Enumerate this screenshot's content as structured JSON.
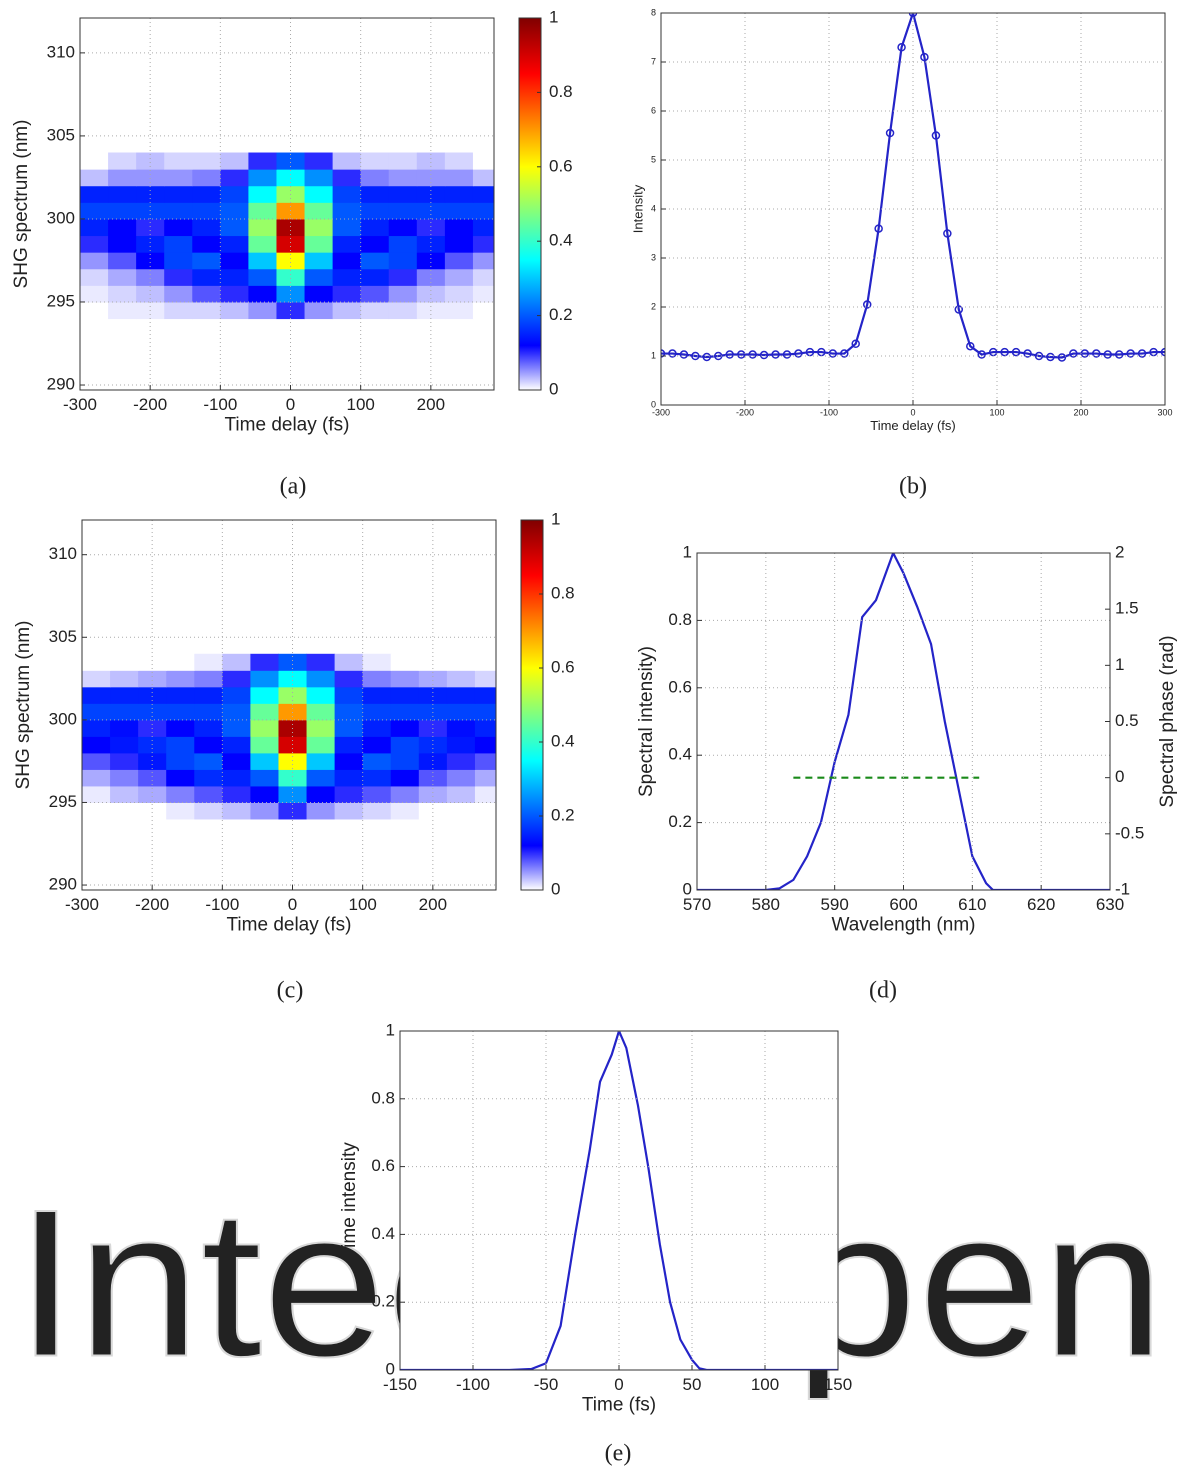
{
  "watermark": "IntechOpen",
  "chart_data": [
    {
      "type": "heatmap",
      "caption": "(a)",
      "xlabel": "Time delay (fs)",
      "ylabel": "SHG spectrum (nm)",
      "xlim": [
        -300,
        290
      ],
      "ylim": [
        289.7,
        312.1
      ],
      "xticks": [
        -300,
        -200,
        -100,
        0,
        100,
        200
      ],
      "yticks": [
        290,
        295,
        300,
        305,
        310
      ],
      "grid": true,
      "clim": [
        0,
        1
      ],
      "cticks": [
        0,
        0.2,
        0.4,
        0.6,
        0.8,
        1
      ],
      "x": [
        -280,
        -240,
        -200,
        -160,
        -120,
        -80,
        -40,
        0,
        40,
        80,
        120,
        160,
        200,
        240,
        280
      ],
      "y": [
        294.5,
        295.5,
        296.5,
        297.5,
        298.5,
        299.5,
        300.5,
        301.5,
        302.5,
        303.5
      ],
      "z": [
        [
          0,
          0.01,
          0.01,
          0.02,
          0.02,
          0.03,
          0.05,
          0.1,
          0.05,
          0.03,
          0.02,
          0.02,
          0.01,
          0.01,
          0
        ],
        [
          0.01,
          0.02,
          0.03,
          0.05,
          0.08,
          0.1,
          0.12,
          0.25,
          0.12,
          0.1,
          0.08,
          0.05,
          0.03,
          0.02,
          0.01
        ],
        [
          0.02,
          0.04,
          0.06,
          0.1,
          0.15,
          0.15,
          0.2,
          0.4,
          0.2,
          0.15,
          0.15,
          0.1,
          0.06,
          0.04,
          0.02
        ],
        [
          0.05,
          0.08,
          0.12,
          0.18,
          0.2,
          0.12,
          0.3,
          0.6,
          0.3,
          0.12,
          0.2,
          0.18,
          0.12,
          0.08,
          0.05
        ],
        [
          0.1,
          0.12,
          0.15,
          0.18,
          0.12,
          0.15,
          0.45,
          0.9,
          0.45,
          0.15,
          0.12,
          0.18,
          0.15,
          0.12,
          0.1
        ],
        [
          0.15,
          0.12,
          0.1,
          0.12,
          0.15,
          0.2,
          0.5,
          0.95,
          0.5,
          0.2,
          0.15,
          0.12,
          0.1,
          0.12,
          0.15
        ],
        [
          0.18,
          0.18,
          0.18,
          0.18,
          0.18,
          0.2,
          0.45,
          0.7,
          0.45,
          0.2,
          0.18,
          0.18,
          0.18,
          0.18,
          0.18
        ],
        [
          0.15,
          0.15,
          0.15,
          0.15,
          0.15,
          0.18,
          0.35,
          0.5,
          0.35,
          0.18,
          0.15,
          0.15,
          0.15,
          0.15,
          0.15
        ],
        [
          0.03,
          0.05,
          0.05,
          0.05,
          0.06,
          0.1,
          0.25,
          0.35,
          0.25,
          0.1,
          0.06,
          0.05,
          0.05,
          0.05,
          0.03
        ],
        [
          0,
          0.02,
          0.03,
          0.02,
          0.02,
          0.03,
          0.1,
          0.2,
          0.1,
          0.03,
          0.02,
          0.02,
          0.03,
          0.02,
          0
        ]
      ]
    },
    {
      "type": "line",
      "caption": "(b)",
      "xlabel": "Time delay (fs)",
      "ylabel": "Intensity",
      "xlim": [
        -300,
        300
      ],
      "ylim": [
        0,
        8
      ],
      "xticks": [
        -300,
        -200,
        -100,
        0,
        100,
        200,
        300
      ],
      "yticks": [
        0,
        1,
        2,
        3,
        4,
        5,
        6,
        7,
        8
      ],
      "grid": true,
      "x": [
        -300,
        -286.4,
        -272.7,
        -259.1,
        -245.5,
        -231.8,
        -218.2,
        -204.5,
        -190.9,
        -177.3,
        -163.6,
        -150,
        -136.4,
        -122.7,
        -109.1,
        -95.5,
        -81.8,
        -68.2,
        -54.5,
        -40.9,
        -27.3,
        -13.6,
        0,
        13.6,
        27.3,
        40.9,
        54.5,
        68.2,
        81.8,
        95.5,
        109.1,
        122.7,
        136.4,
        150,
        163.6,
        177.3,
        190.9,
        204.5,
        218.2,
        231.8,
        245.5,
        259.1,
        272.7,
        286.4,
        300
      ],
      "series": [
        {
          "color": "#2424c8",
          "marker": "circle",
          "values": [
            1.05,
            1.05,
            1.03,
            1.0,
            0.98,
            1.0,
            1.03,
            1.03,
            1.03,
            1.02,
            1.03,
            1.03,
            1.05,
            1.08,
            1.08,
            1.05,
            1.05,
            1.25,
            2.05,
            3.6,
            5.55,
            7.3,
            8,
            7.1,
            5.5,
            3.5,
            1.95,
            1.2,
            1.03,
            1.08,
            1.08,
            1.08,
            1.05,
            1.0,
            0.98,
            0.97,
            1.05,
            1.05,
            1.05,
            1.03,
            1.03,
            1.05,
            1.05,
            1.08,
            1.08
          ]
        }
      ]
    },
    {
      "type": "heatmap",
      "caption": "(c)",
      "xlabel": "Time delay (fs)",
      "ylabel": "SHG spectrum (nm)",
      "xlim": [
        -300,
        290
      ],
      "ylim": [
        289.7,
        312.1
      ],
      "xticks": [
        -300,
        -200,
        -100,
        0,
        100,
        200
      ],
      "yticks": [
        290,
        295,
        300,
        305,
        310
      ],
      "grid": true,
      "clim": [
        0,
        1
      ],
      "cticks": [
        0,
        0.2,
        0.4,
        0.6,
        0.8,
        1
      ],
      "x": [
        -280,
        -240,
        -200,
        -160,
        -120,
        -80,
        -40,
        0,
        40,
        80,
        120,
        160,
        200,
        240,
        280
      ],
      "y": [
        294.5,
        295.5,
        296.5,
        297.5,
        298.5,
        299.5,
        300.5,
        301.5,
        302.5,
        303.5
      ],
      "z": [
        [
          0,
          0,
          0,
          0.01,
          0.02,
          0.03,
          0.05,
          0.1,
          0.05,
          0.03,
          0.02,
          0.01,
          0,
          0,
          0
        ],
        [
          0.01,
          0.03,
          0.04,
          0.06,
          0.08,
          0.1,
          0.12,
          0.25,
          0.12,
          0.1,
          0.08,
          0.06,
          0.04,
          0.03,
          0.01
        ],
        [
          0.04,
          0.06,
          0.08,
          0.12,
          0.16,
          0.15,
          0.2,
          0.4,
          0.2,
          0.15,
          0.16,
          0.12,
          0.08,
          0.06,
          0.04
        ],
        [
          0.08,
          0.1,
          0.14,
          0.18,
          0.2,
          0.12,
          0.3,
          0.6,
          0.3,
          0.12,
          0.2,
          0.18,
          0.14,
          0.1,
          0.08
        ],
        [
          0.12,
          0.14,
          0.16,
          0.18,
          0.12,
          0.15,
          0.45,
          0.9,
          0.45,
          0.15,
          0.12,
          0.18,
          0.16,
          0.14,
          0.12
        ],
        [
          0.15,
          0.13,
          0.1,
          0.12,
          0.15,
          0.2,
          0.5,
          0.95,
          0.5,
          0.2,
          0.15,
          0.12,
          0.1,
          0.13,
          0.15
        ],
        [
          0.18,
          0.18,
          0.18,
          0.18,
          0.18,
          0.2,
          0.45,
          0.7,
          0.45,
          0.2,
          0.18,
          0.18,
          0.18,
          0.18,
          0.18
        ],
        [
          0.15,
          0.15,
          0.15,
          0.15,
          0.15,
          0.18,
          0.35,
          0.5,
          0.35,
          0.18,
          0.15,
          0.15,
          0.15,
          0.15,
          0.15
        ],
        [
          0.02,
          0.03,
          0.04,
          0.05,
          0.06,
          0.1,
          0.25,
          0.35,
          0.25,
          0.1,
          0.06,
          0.05,
          0.04,
          0.03,
          0.02
        ],
        [
          0,
          0,
          0,
          0,
          0.01,
          0.03,
          0.1,
          0.2,
          0.1,
          0.03,
          0.01,
          0,
          0,
          0,
          0
        ]
      ]
    },
    {
      "type": "line",
      "caption": "(d)",
      "xlabel": "Wavelength (nm)",
      "ylabel": "Spectral intensity)",
      "y2label": "Spectral phase (rad)",
      "ycolor": "#3a3ad0",
      "y2color": "#2e8b2e",
      "xlim": [
        570,
        630
      ],
      "ylim": [
        0,
        1
      ],
      "y2lim": [
        -1,
        2
      ],
      "xticks": [
        570,
        580,
        590,
        600,
        610,
        620,
        630
      ],
      "yticks": [
        0,
        0.2,
        0.4,
        0.6,
        0.8,
        1
      ],
      "y2ticks": [
        -1,
        -0.5,
        0,
        0.5,
        1,
        1.5,
        2
      ],
      "grid": true,
      "series": [
        {
          "color": "#2424c8",
          "x": [
            570,
            575,
            580,
            582,
            584,
            586,
            588,
            590,
            592,
            594,
            596,
            598.5,
            600,
            602,
            604,
            606,
            608,
            610,
            612,
            613,
            620,
            630
          ],
          "values": [
            0,
            0,
            0,
            0.005,
            0.03,
            0.1,
            0.2,
            0.38,
            0.52,
            0.81,
            0.86,
            1,
            0.94,
            0.84,
            0.73,
            0.5,
            0.3,
            0.1,
            0.02,
            0,
            0,
            0
          ]
        },
        {
          "color": "#1a8a1a",
          "dash": true,
          "axis": "y2",
          "x": [
            584,
            611
          ],
          "values": [
            0,
            0
          ]
        }
      ]
    },
    {
      "type": "line",
      "caption": "(e)",
      "xlabel": "Time (fs)",
      "ylabel": "Time intensity",
      "xlim": [
        -150,
        150
      ],
      "ylim": [
        0,
        1
      ],
      "xticks": [
        -150,
        -100,
        -50,
        0,
        50,
        100,
        150
      ],
      "yticks": [
        0,
        0.2,
        0.4,
        0.6,
        0.8,
        1
      ],
      "grid": true,
      "x": [
        -150,
        -100,
        -75,
        -60,
        -50,
        -40,
        -30,
        -20,
        -13,
        -5,
        0,
        5,
        13,
        20,
        28,
        35,
        42,
        50,
        55,
        60,
        100,
        150
      ],
      "series": [
        {
          "color": "#2424c8",
          "values": [
            0,
            0,
            0,
            0.003,
            0.02,
            0.13,
            0.4,
            0.65,
            0.85,
            0.93,
            1,
            0.95,
            0.78,
            0.6,
            0.37,
            0.2,
            0.09,
            0.03,
            0.005,
            0,
            0,
            0
          ]
        }
      ]
    }
  ]
}
